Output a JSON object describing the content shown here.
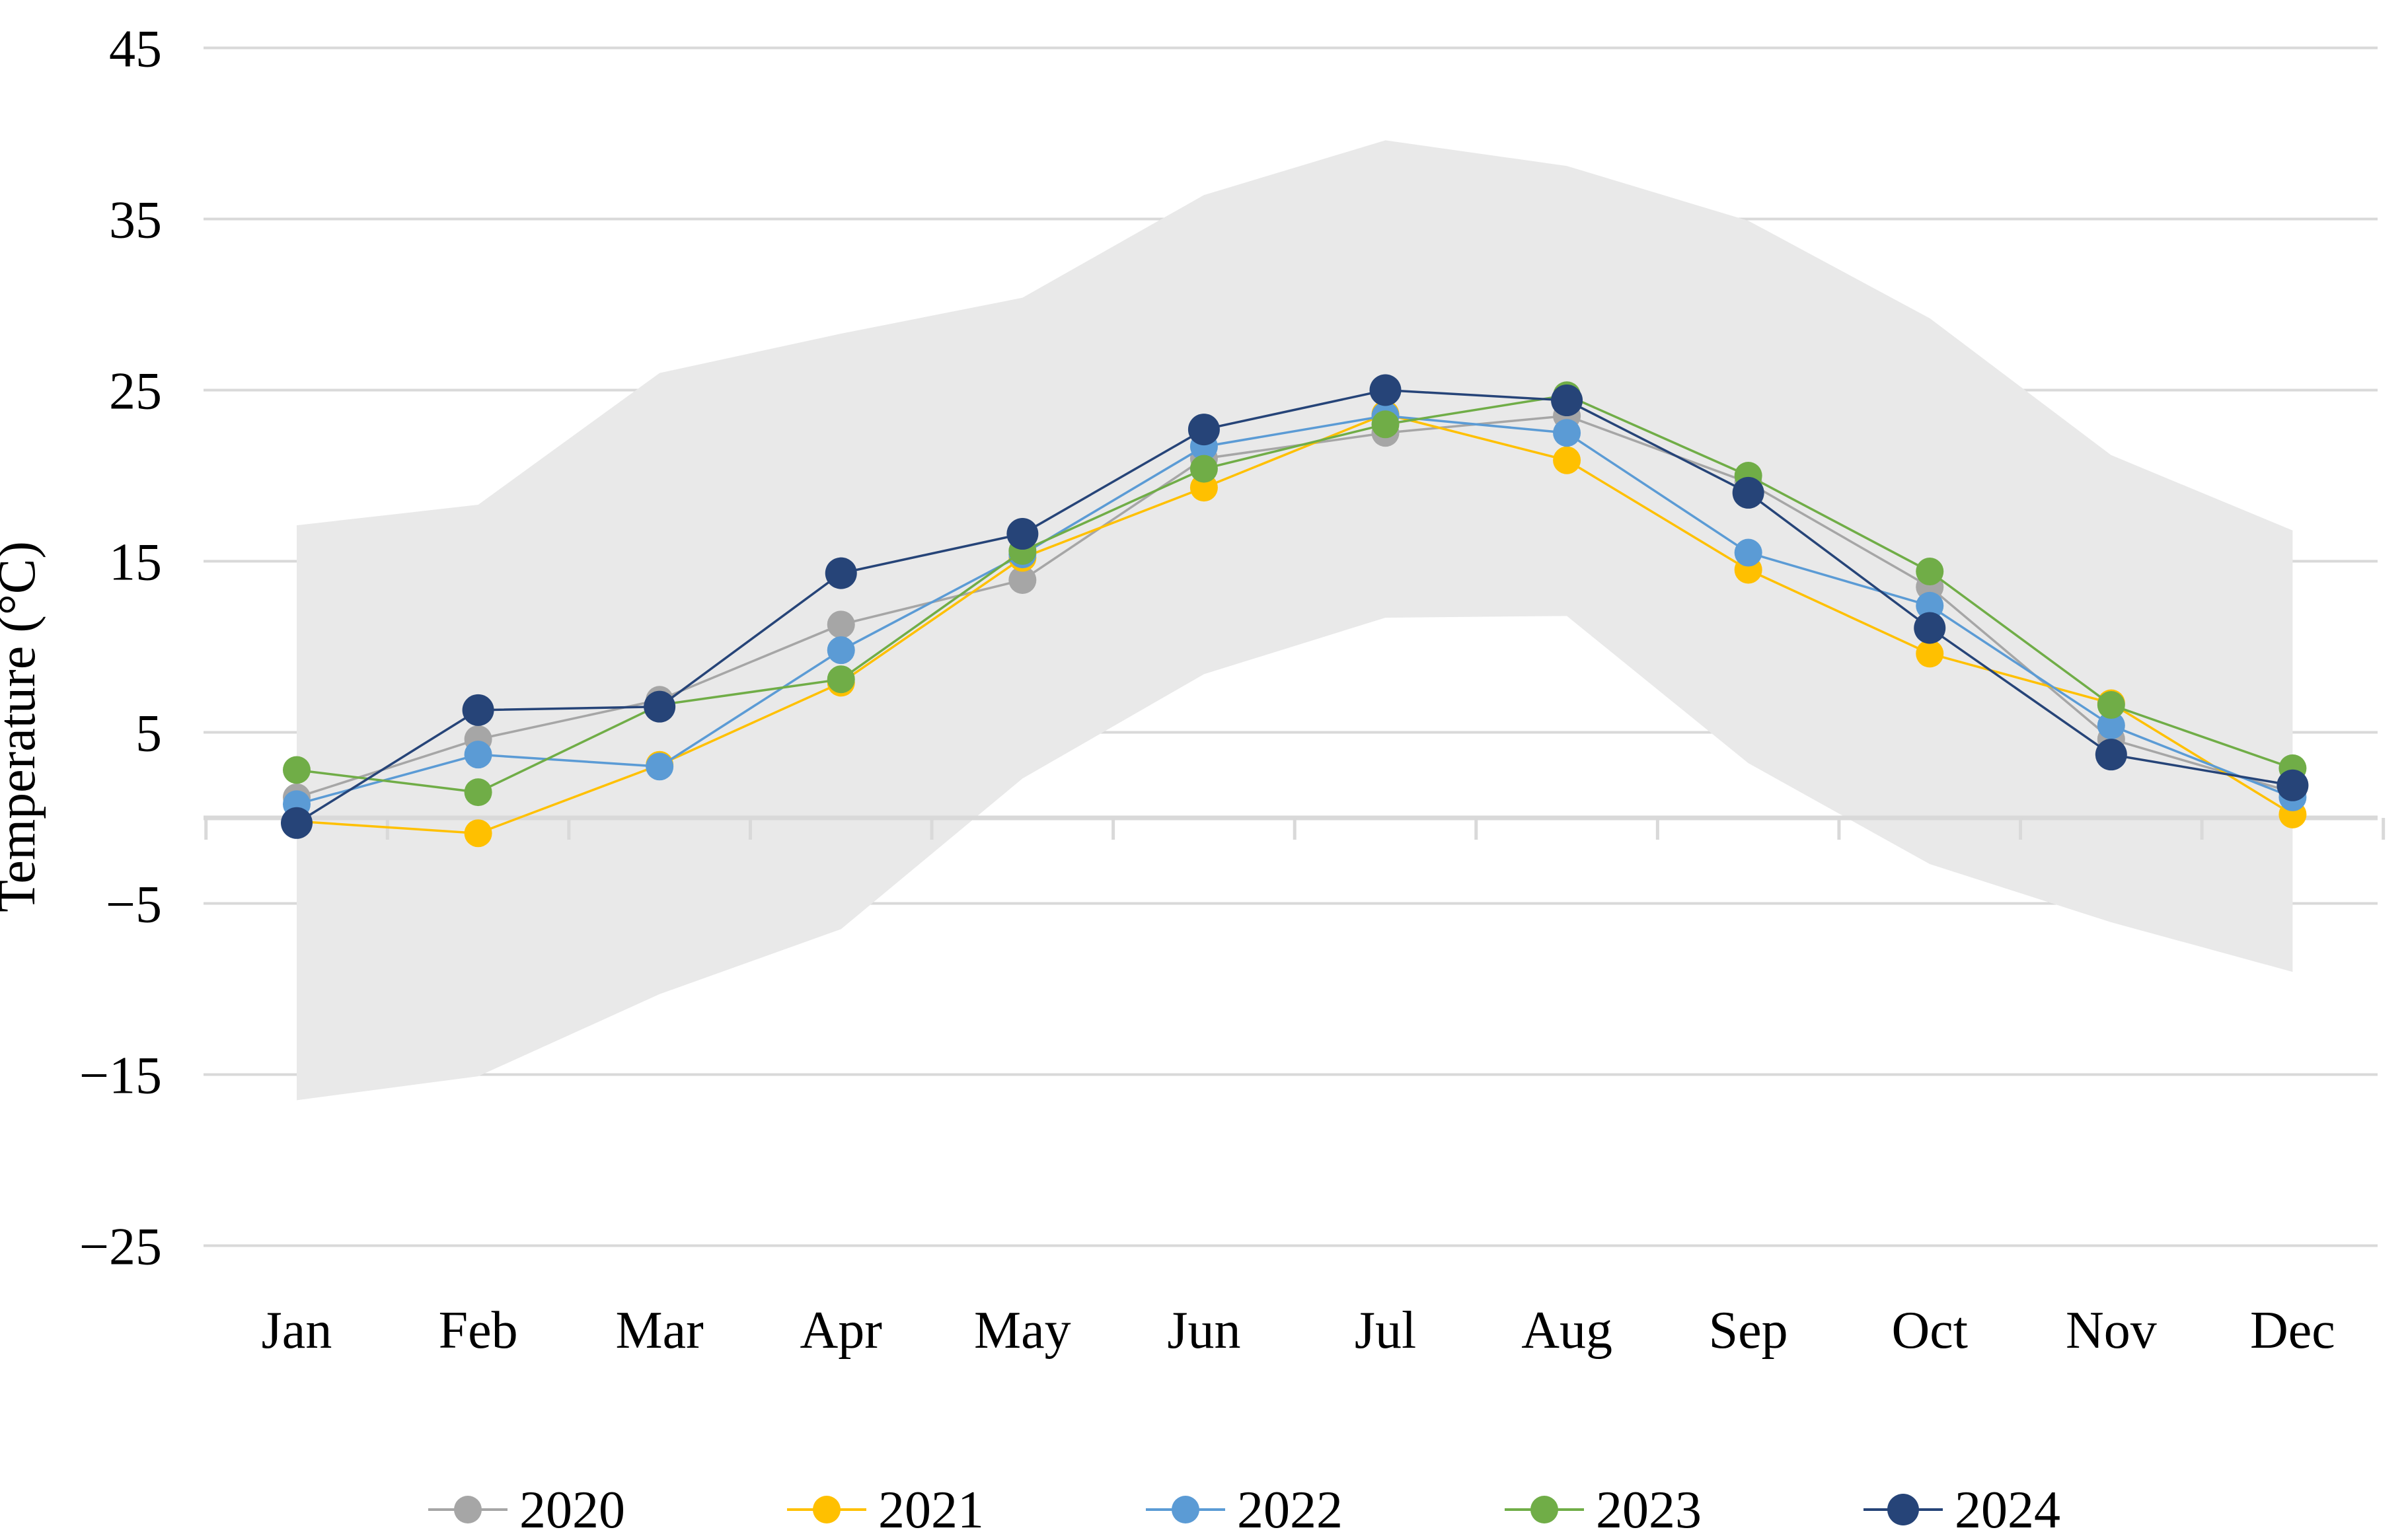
{
  "chart_data": {
    "type": "line",
    "title": "",
    "xlabel": "",
    "ylabel": "Temperature (°C)",
    "categories": [
      "Jan",
      "Feb",
      "Mar",
      "Apr",
      "May",
      "Jun",
      "Jul",
      "Aug",
      "Sep",
      "Oct",
      "Nov",
      "Dec"
    ],
    "y_ticks": [
      "45",
      "35",
      "25",
      "15",
      "5",
      "−5",
      "−15",
      "−25"
    ],
    "y_tick_values": [
      45,
      35,
      25,
      15,
      5,
      -5,
      -15,
      -25
    ],
    "ylim": [
      -25,
      45
    ],
    "grid": "horizontal",
    "legend_position": "bottom",
    "colors": {
      "background": "#ffffff",
      "gridline": "#D9D9D9",
      "axis_line": "#D9D9D9",
      "band_fill": "#E9E9E9",
      "text": "#000000"
    },
    "band": {
      "name": "min-max-range-band",
      "top": [
        17.1,
        18.3,
        26.0,
        28.3,
        30.4,
        36.4,
        39.6,
        38.1,
        34.9,
        29.2,
        21.2,
        16.8
      ],
      "bottom": [
        -16.5,
        -15.1,
        -10.3,
        -6.5,
        2.3,
        8.4,
        11.7,
        11.8,
        3.2,
        -2.7,
        -6.1,
        -9.0
      ]
    },
    "series": [
      {
        "name": "2020",
        "color": "#A6A6A6",
        "marker_radius": 21,
        "values": [
          1.2,
          4.6,
          6.9,
          11.3,
          13.9,
          21.0,
          22.5,
          23.5,
          19.6,
          13.5,
          4.6,
          1.5
        ]
      },
      {
        "name": "2021",
        "color": "#FFC000",
        "marker_radius": 21,
        "values": [
          -0.2,
          -0.9,
          3.1,
          7.9,
          15.2,
          19.3,
          23.6,
          20.9,
          14.5,
          9.6,
          6.7,
          0.2
        ]
      },
      {
        "name": "2022",
        "color": "#5B9BD5",
        "marker_radius": 21,
        "values": [
          0.8,
          3.7,
          3.0,
          9.8,
          15.4,
          21.7,
          23.5,
          22.5,
          15.5,
          12.4,
          5.4,
          1.2
        ]
      },
      {
        "name": "2023",
        "color": "#70AD47",
        "marker_radius": 21,
        "values": [
          2.8,
          1.5,
          6.6,
          8.1,
          15.6,
          20.4,
          23.0,
          24.7,
          20.0,
          14.4,
          6.6,
          2.9
        ]
      },
      {
        "name": "2024",
        "color": "#264478",
        "marker_radius": 24,
        "values": [
          -0.3,
          6.3,
          6.5,
          14.3,
          16.6,
          22.7,
          25.0,
          24.4,
          19.0,
          11.1,
          3.7,
          1.9
        ]
      }
    ]
  }
}
